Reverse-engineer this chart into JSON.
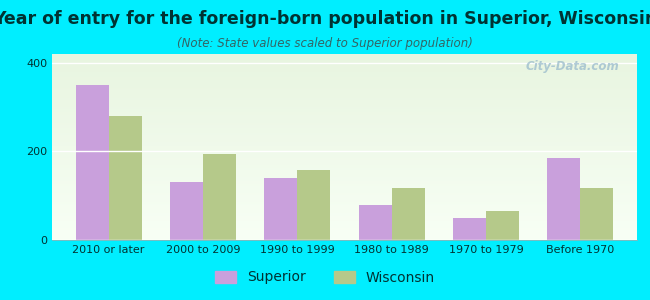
{
  "title": "Year of entry for the foreign-born population in Superior, Wisconsin",
  "subtitle": "(Note: State values scaled to Superior population)",
  "categories": [
    "2010 or later",
    "2000 to 2009",
    "1990 to 1999",
    "1980 to 1989",
    "1970 to 1979",
    "Before 1970"
  ],
  "superior_values": [
    350,
    130,
    140,
    78,
    50,
    185
  ],
  "wisconsin_values": [
    280,
    195,
    158,
    118,
    65,
    118
  ],
  "superior_color": "#c9a0dc",
  "wisconsin_color": "#b5c98a",
  "background_color": "#00eeff",
  "plot_bg_top": "#e8f5e0",
  "plot_bg_bottom": "#f8fff5",
  "title_color": "#003333",
  "subtitle_color": "#336666",
  "ylim": [
    0,
    420
  ],
  "yticks": [
    0,
    200,
    400
  ],
  "bar_width": 0.35,
  "title_fontsize": 12.5,
  "subtitle_fontsize": 8.5,
  "tick_fontsize": 8,
  "legend_fontsize": 10,
  "watermark_text": "City-Data.com"
}
